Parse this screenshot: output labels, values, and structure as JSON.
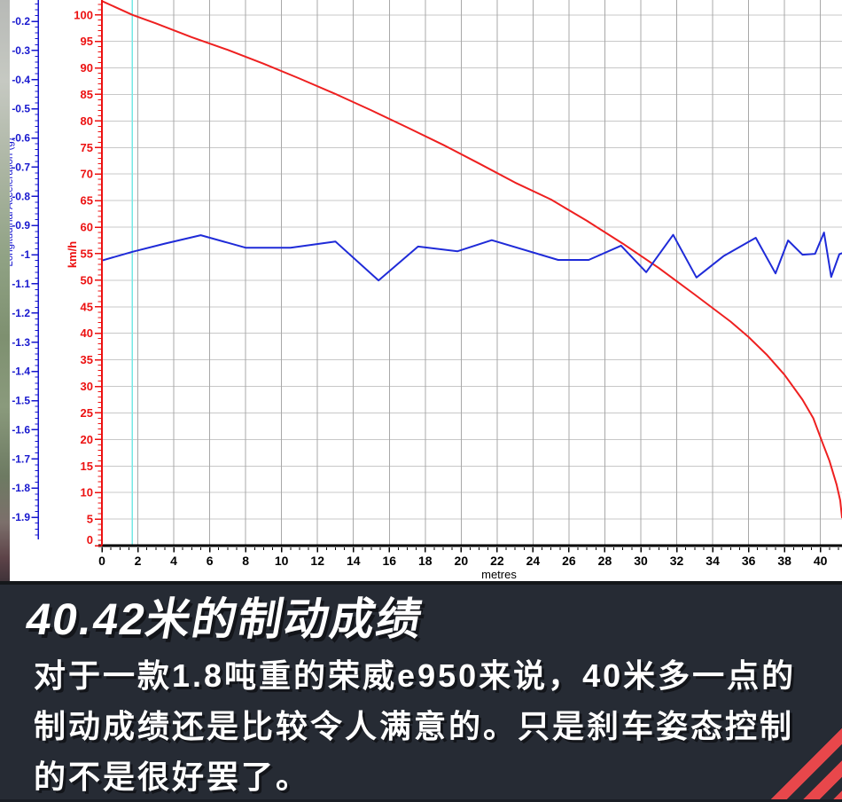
{
  "panel": {
    "title": "40.42米的制动成绩",
    "body_lines": [
      "对于一款1.8吨重的荣威e950来说，40米多一点的",
      "制动成绩还是比较令人满意的。只是刹车姿态控制",
      "的不是很好罢了。"
    ],
    "bg_color": "#262B34",
    "text_color": "#FFFFFF",
    "stripe_color": "#E8474B"
  },
  "chart_data": {
    "type": "line",
    "title": "",
    "xlabel": "metres",
    "x_range": [
      0,
      41.2
    ],
    "x_tick_step": 2,
    "x_minor_step": 0.5,
    "grid": true,
    "marker_line_x": 1.7,
    "marker_line_color": "#74E8E6",
    "grid_color_horizontal": "#C8C8C8",
    "grid_color_vertical": "#A8A8A8",
    "axes": {
      "speed": {
        "label": "km/h",
        "color": "#EC1111",
        "range": [
          0,
          102.8
        ],
        "tick_step": 5,
        "minor_step": 1,
        "tick_labels": [
          "0",
          "5",
          "10",
          "15",
          "20",
          "25",
          "30",
          "35",
          "40",
          "45",
          "50",
          "55",
          "60",
          "65",
          "70",
          "75",
          "80",
          "85",
          "90",
          "95",
          "100"
        ]
      },
      "accel": {
        "label": "Longitudinal Acceleration (g)",
        "color": "#1717CE",
        "range_top": -0.127,
        "range_bottom": -1.997,
        "label_first": -0.2,
        "label_last": -1.9,
        "tick_step": 0.1,
        "minor_step": 0.02
      }
    },
    "series": [
      {
        "name": "speed",
        "axis": "speed",
        "color": "#EE2020",
        "points": [
          [
            0,
            102.6
          ],
          [
            1.7,
            100
          ],
          [
            3,
            98.4
          ],
          [
            5,
            95.8
          ],
          [
            7,
            93.4
          ],
          [
            9,
            90.8
          ],
          [
            11,
            88
          ],
          [
            13,
            85.1
          ],
          [
            15,
            82
          ],
          [
            17,
            78.8
          ],
          [
            19,
            75.5
          ],
          [
            21,
            72
          ],
          [
            23,
            68.4
          ],
          [
            25,
            65.2
          ],
          [
            27,
            61.2
          ],
          [
            29,
            56.9
          ],
          [
            31,
            52.3
          ],
          [
            33,
            47.3
          ],
          [
            35,
            42.2
          ],
          [
            36,
            39.3
          ],
          [
            37,
            36
          ],
          [
            38,
            32.2
          ],
          [
            39,
            27.5
          ],
          [
            39.6,
            24
          ],
          [
            40.1,
            19.5
          ],
          [
            40.5,
            16
          ],
          [
            40.9,
            11.5
          ],
          [
            41.1,
            8.5
          ],
          [
            41.2,
            5.3
          ]
        ]
      },
      {
        "name": "longitudinal-acceleration",
        "axis": "accel",
        "color": "#1F2BD8",
        "points": [
          [
            0,
            -1.02
          ],
          [
            1.7,
            -0.99
          ],
          [
            3.5,
            -0.962
          ],
          [
            5.5,
            -0.933
          ],
          [
            8,
            -0.976
          ],
          [
            10.5,
            -0.976
          ],
          [
            13,
            -0.955
          ],
          [
            15.4,
            -1.088
          ],
          [
            17.6,
            -0.972
          ],
          [
            19.8,
            -0.988
          ],
          [
            21.7,
            -0.95
          ],
          [
            25.4,
            -1.018
          ],
          [
            27.1,
            -1.018
          ],
          [
            28.9,
            -0.969
          ],
          [
            30.3,
            -1.06
          ],
          [
            31.8,
            -0.932
          ],
          [
            33.1,
            -1.078
          ],
          [
            34.6,
            -1.005
          ],
          [
            36.4,
            -0.942
          ],
          [
            37.5,
            -1.064
          ],
          [
            38.2,
            -0.951
          ],
          [
            39,
            -1
          ],
          [
            39.7,
            -0.997
          ],
          [
            40.2,
            -0.924
          ],
          [
            40.6,
            -1.076
          ],
          [
            41.05,
            -0.998
          ],
          [
            41.2,
            -0.995
          ]
        ]
      }
    ]
  }
}
